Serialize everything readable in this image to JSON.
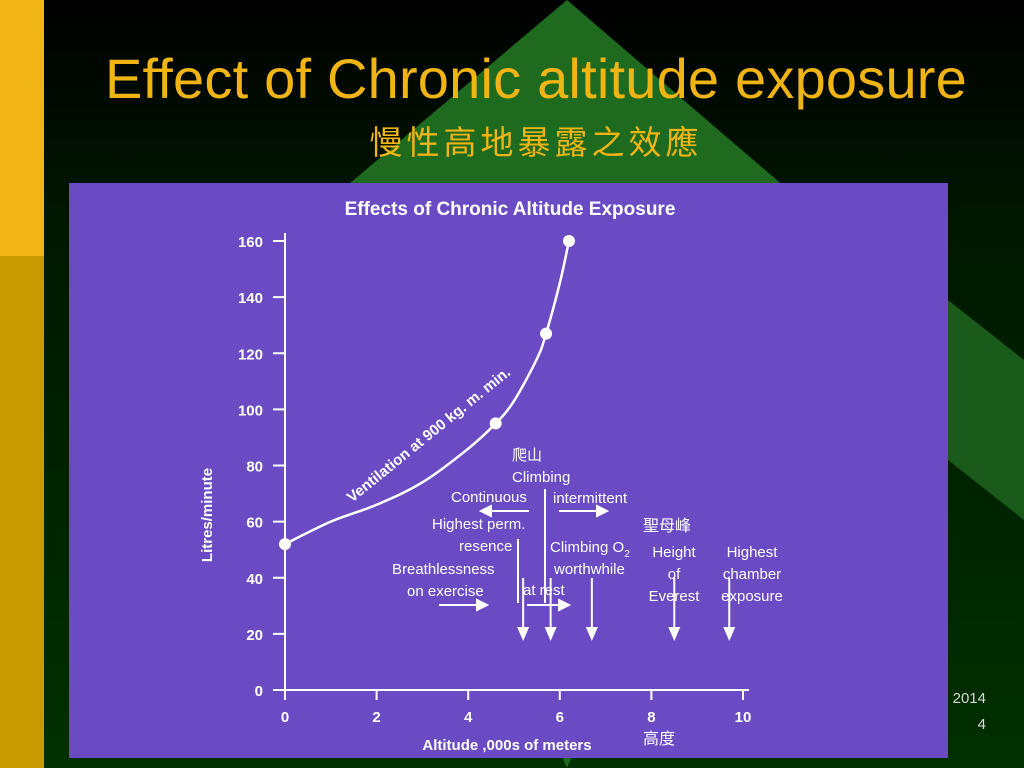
{
  "slide": {
    "title": "Effect of Chronic altitude exposure",
    "subtitle": "慢性高地暴露之效應",
    "footer_date": "2014",
    "footer_page": "4"
  },
  "colors": {
    "title": "#f0b414",
    "chart_bg": "#6a4bc4",
    "chart_ink": "#ffffff",
    "chinese_annotation": "#ffffff"
  },
  "chart_data": {
    "type": "line",
    "title": "Effects of Chronic Altitude Exposure",
    "xlabel": "Altitude ,000s of meters",
    "ylabel": "Litres/minute",
    "xlim": [
      0,
      10
    ],
    "ylim": [
      0,
      160
    ],
    "x_ticks": [
      0,
      2,
      4,
      6,
      8,
      10
    ],
    "y_ticks": [
      0,
      20,
      40,
      60,
      80,
      100,
      120,
      140,
      160
    ],
    "series": [
      {
        "name": "Ventilation at 900 kg. m. min.",
        "x": [
          0,
          1,
          2,
          3,
          4,
          4.6,
          5,
          5.5,
          5.7,
          6.0,
          6.2
        ],
        "y": [
          52,
          60,
          66,
          74,
          86,
          95,
          103,
          118,
          127,
          145,
          160
        ]
      }
    ],
    "markers": [
      {
        "x": 0,
        "y": 52
      },
      {
        "x": 4.6,
        "y": 95
      },
      {
        "x": 5.7,
        "y": 127
      },
      {
        "x": 6.2,
        "y": 160
      }
    ],
    "annotations": {
      "climbing_cn": "爬山",
      "climbing": "Climbing",
      "continuous": "Continuous",
      "intermittent": "intermittent",
      "highest_perm_1": "Highest perm.",
      "highest_perm_2": "resence",
      "breathless_1": "Breathlessness",
      "breathless_2": "on exercise",
      "climbing_o2_1": "Climbing O",
      "climbing_o2_sub": "2",
      "climbing_o2_2": "worthwhile",
      "at_rest": "at rest",
      "everest_cn": "聖母峰",
      "everest_1": "Height",
      "everest_2": "of",
      "everest_3": "Everest",
      "chamber_1": "Highest",
      "chamber_2": "chamber",
      "chamber_3": "exposure",
      "altitude_cn": "高度"
    },
    "down_arrows_x": [
      5.2,
      5.8,
      6.7,
      8.5,
      9.7
    ],
    "grid": false,
    "legend": "none"
  }
}
